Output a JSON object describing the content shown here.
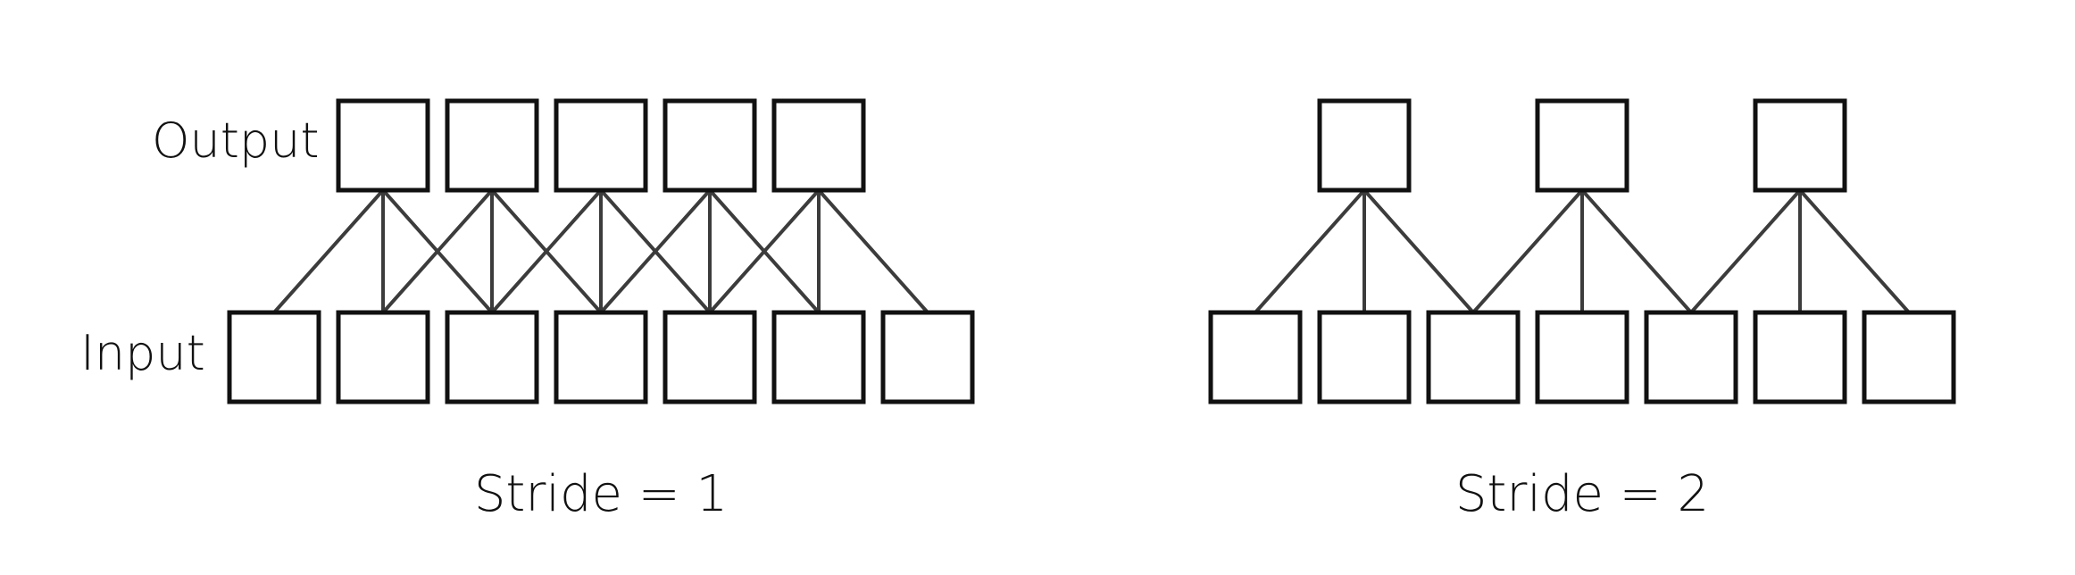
{
  "labels": {
    "output": "Output",
    "input": "Input"
  },
  "panels": [
    {
      "caption": "Stride = 1",
      "stride": 1,
      "kernel_size": 3,
      "input_count": 7,
      "output_count": 5
    },
    {
      "caption": "Stride = 2",
      "stride": 2,
      "kernel_size": 3,
      "input_count": 7,
      "output_count": 3
    }
  ],
  "colors": {
    "box_border": "#111111",
    "edge": "#3c3c3c",
    "text": "#111111",
    "background": "#ffffff"
  }
}
